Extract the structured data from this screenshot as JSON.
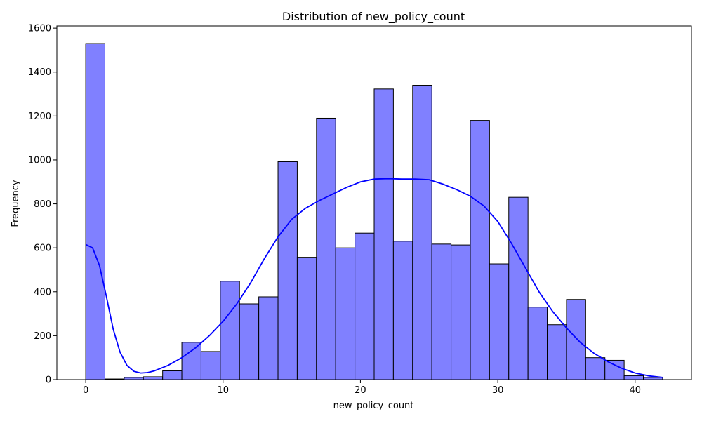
{
  "chart_data": {
    "type": "bar",
    "title": "Distribution of new_policy_count",
    "xlabel": "new_policy_count",
    "ylabel": "Frequency",
    "xlim": [
      -2.1,
      44.1
    ],
    "ylim": [
      0,
      1610
    ],
    "xticks": [
      0,
      10,
      20,
      30,
      40
    ],
    "yticks": [
      0,
      200,
      400,
      600,
      800,
      1000,
      1200,
      1400,
      1600
    ],
    "bin_start": 0,
    "bin_width": 1.4,
    "values": [
      1530,
      3,
      10,
      13,
      40,
      170,
      128,
      448,
      345,
      377,
      992,
      557,
      1190,
      600,
      667,
      1323,
      630,
      1340,
      617,
      613,
      1180,
      527,
      830,
      330,
      250,
      365,
      100,
      88,
      18,
      10
    ],
    "bar_color": "#8080ff",
    "bar_edge": "#000000",
    "kde": {
      "color": "#0000ff",
      "x": [
        0,
        0.5,
        1,
        1.5,
        2,
        2.5,
        3,
        3.5,
        4,
        4.5,
        5,
        6,
        7,
        8,
        9,
        10,
        11,
        12,
        13,
        14,
        15,
        16,
        17,
        18,
        19,
        20,
        21,
        22,
        23,
        24,
        25,
        26,
        27,
        28,
        29,
        30,
        31,
        32,
        33,
        34,
        35,
        36,
        37,
        38,
        39,
        40,
        41,
        42
      ],
      "y": [
        615,
        600,
        520,
        380,
        230,
        125,
        65,
        38,
        30,
        32,
        40,
        65,
        100,
        145,
        200,
        265,
        345,
        440,
        550,
        650,
        730,
        780,
        815,
        845,
        875,
        900,
        913,
        915,
        913,
        913,
        910,
        890,
        865,
        835,
        790,
        720,
        620,
        510,
        400,
        310,
        235,
        170,
        120,
        82,
        52,
        30,
        17,
        10
      ]
    }
  }
}
